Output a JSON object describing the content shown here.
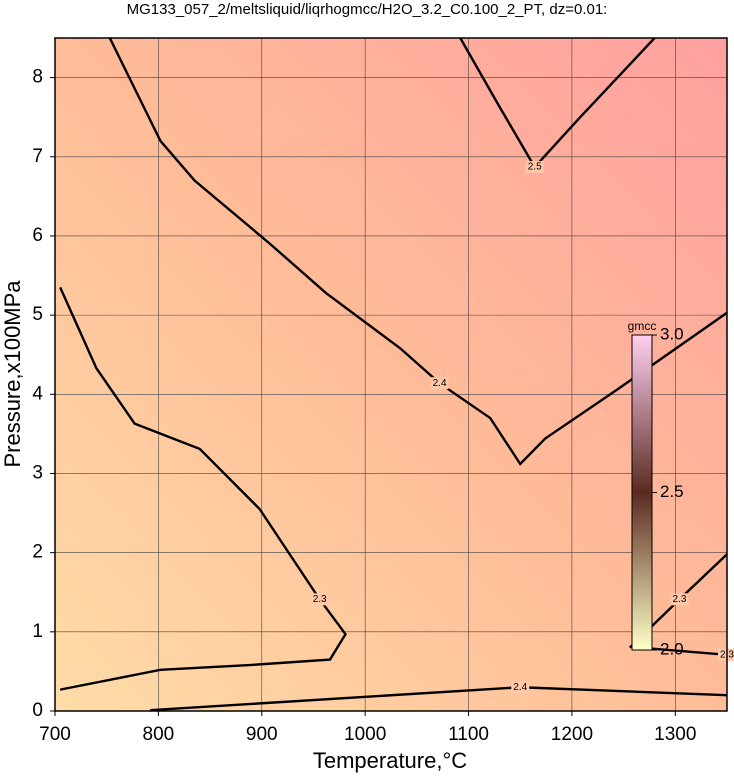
{
  "chart_data": {
    "type": "contour",
    "title": "MG133_057_2/meltsliquid/liqrhogmcc/H2O_3.2_C0.100_2_PT, dz=0.01:",
    "x_label": "Temperature,°C",
    "y_label": "Pressure,x100MPa",
    "xlim": [
      700,
      1350
    ],
    "ylim": [
      0,
      8.5
    ],
    "xticks": [
      700,
      800,
      900,
      1000,
      1100,
      1200,
      1300
    ],
    "yticks": [
      0,
      1,
      2,
      3,
      4,
      5,
      6,
      7,
      8
    ],
    "grid": true,
    "colorbar": {
      "label": "gmcc",
      "lim": [
        2.0,
        3.0
      ],
      "ticks": [
        {
          "value": 2.0,
          "label": "2.0"
        },
        2.5,
        {
          "value": 3.0,
          "label": "3.0"
        }
      ],
      "colors": [
        "#ffffc8",
        "#5a2a20",
        "#ffd0f0"
      ]
    },
    "contours": [
      {
        "level": 2.4,
        "x": [
          753,
          802,
          835,
          908,
          962,
          1034,
          1072,
          1121,
          1150,
          1174,
          1246,
          1350
        ],
        "y": [
          8.5,
          7.2,
          6.7,
          5.9,
          5.28,
          4.58,
          4.14,
          3.7,
          3.12,
          3.44,
          4.08,
          5.03
        ]
      },
      {
        "level": 2.5,
        "x": [
          1092,
          1130,
          1164,
          1208,
          1280
        ],
        "y": [
          8.5,
          7.63,
          6.87,
          7.5,
          8.5
        ]
      },
      {
        "level": 2.3,
        "x": [
          705,
          740,
          777,
          840,
          898,
          956,
          981,
          966,
          888,
          802,
          705
        ],
        "y": [
          5.35,
          4.33,
          3.63,
          3.31,
          2.55,
          1.41,
          0.97,
          0.65,
          0.58,
          0.52,
          0.27
        ]
      },
      {
        "level": 2.3,
        "x": [
          1256,
          1304,
          1350
        ],
        "y": [
          0.8,
          1.41,
          1.98
        ]
      },
      {
        "level": 2.3,
        "x": [
          1266,
          1350
        ],
        "y": [
          0.8,
          0.71
        ]
      },
      {
        "level": 2.4,
        "x": [
          792,
          1150,
          1350
        ],
        "y": [
          0.01,
          0.3,
          0.2
        ]
      }
    ]
  }
}
